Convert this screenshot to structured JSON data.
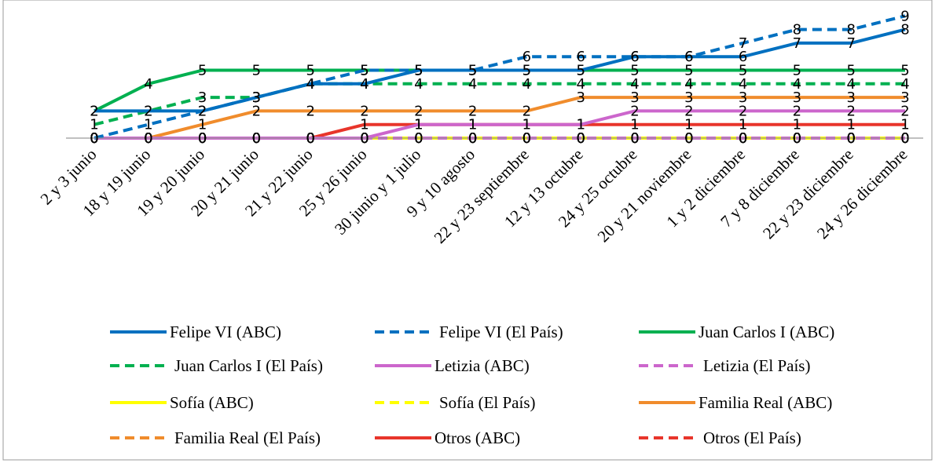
{
  "chart_data": {
    "type": "line",
    "categories": [
      "2 y 3 junio",
      "18 y 19 junio",
      "19 y 20 junio",
      "20 y 21 junio",
      "21 y 22 junio",
      "25 y 26 junio",
      "30 junio y 1 julio",
      "9 y 10 agosto",
      "22 y 23 septiembre",
      "12 y 13 octubre",
      "24 y 25 octubre",
      "20 y 21 noviembre",
      "1 y 2 diciembre",
      "7 y 8 diciembre",
      "22 y 23 diciembre",
      "24 y 26 diciembre"
    ],
    "ylim": [
      0,
      9
    ],
    "series": [
      {
        "name": "Felipe VI (ABC)",
        "color": "#0070C0",
        "dash": false,
        "values": [
          2,
          2,
          2,
          3,
          4,
          4,
          5,
          5,
          5,
          5,
          6,
          6,
          6,
          7,
          7,
          8
        ]
      },
      {
        "name": "Felipe VI (El País)",
        "color": "#0070C0",
        "dash": true,
        "values": [
          0,
          1,
          2,
          3,
          4,
          5,
          5,
          5,
          6,
          6,
          6,
          6,
          7,
          8,
          8,
          9
        ]
      },
      {
        "name": "Juan Carlos I (ABC)",
        "color": "#00B050",
        "dash": false,
        "values": [
          2,
          4,
          5,
          5,
          5,
          5,
          5,
          5,
          5,
          5,
          5,
          5,
          5,
          5,
          5,
          5
        ]
      },
      {
        "name": "Juan Carlos I (El País)",
        "color": "#00B050",
        "dash": true,
        "values": [
          1,
          2,
          3,
          3,
          4,
          4,
          4,
          4,
          4,
          4,
          4,
          4,
          4,
          4,
          4,
          4
        ]
      },
      {
        "name": "Letizia (ABC)",
        "color": "#CC66CC",
        "dash": false,
        "values": [
          0,
          0,
          0,
          0,
          0,
          0,
          1,
          1,
          1,
          1,
          2,
          2,
          2,
          2,
          2,
          2
        ]
      },
      {
        "name": "Letizia (El País)",
        "color": "#CC66CC",
        "dash": true,
        "values": [
          0,
          0,
          0,
          0,
          0,
          0,
          0,
          0,
          0,
          0,
          0,
          0,
          0,
          0,
          0,
          0
        ]
      },
      {
        "name": "Sofía (ABC)",
        "color": "#FFFF00",
        "dash": false,
        "values": [
          0,
          0,
          0,
          0,
          0,
          0,
          0,
          0,
          0,
          0,
          0,
          0,
          0,
          0,
          0,
          0
        ]
      },
      {
        "name": "Sofía (El País)",
        "color": "#FFFF00",
        "dash": true,
        "values": [
          0,
          0,
          0,
          0,
          0,
          0,
          0,
          0,
          0,
          0,
          0,
          0,
          0,
          0,
          0,
          0
        ]
      },
      {
        "name": "Familia Real (ABC)",
        "color": "#F08C2C",
        "dash": false,
        "values": [
          0,
          0,
          1,
          2,
          2,
          2,
          2,
          2,
          2,
          3,
          3,
          3,
          3,
          3,
          3,
          3
        ]
      },
      {
        "name": "Familia Real (El País)",
        "color": "#F08C2C",
        "dash": true,
        "values": [
          0,
          0,
          0,
          0,
          0,
          0,
          0,
          0,
          0,
          0,
          0,
          0,
          0,
          0,
          0,
          0
        ]
      },
      {
        "name": "Otros (ABC)",
        "color": "#E8352B",
        "dash": false,
        "values": [
          0,
          0,
          0,
          0,
          0,
          1,
          1,
          1,
          1,
          1,
          1,
          1,
          1,
          1,
          1,
          1
        ]
      },
      {
        "name": "Otros (El País)",
        "color": "#E8352B",
        "dash": true,
        "values": [
          0,
          0,
          0,
          0,
          0,
          0,
          0,
          0,
          0,
          0,
          0,
          0,
          0,
          0,
          0,
          0
        ]
      }
    ],
    "grid": false,
    "legend_position": "bottom",
    "title": "",
    "xlabel": "",
    "ylabel": ""
  }
}
